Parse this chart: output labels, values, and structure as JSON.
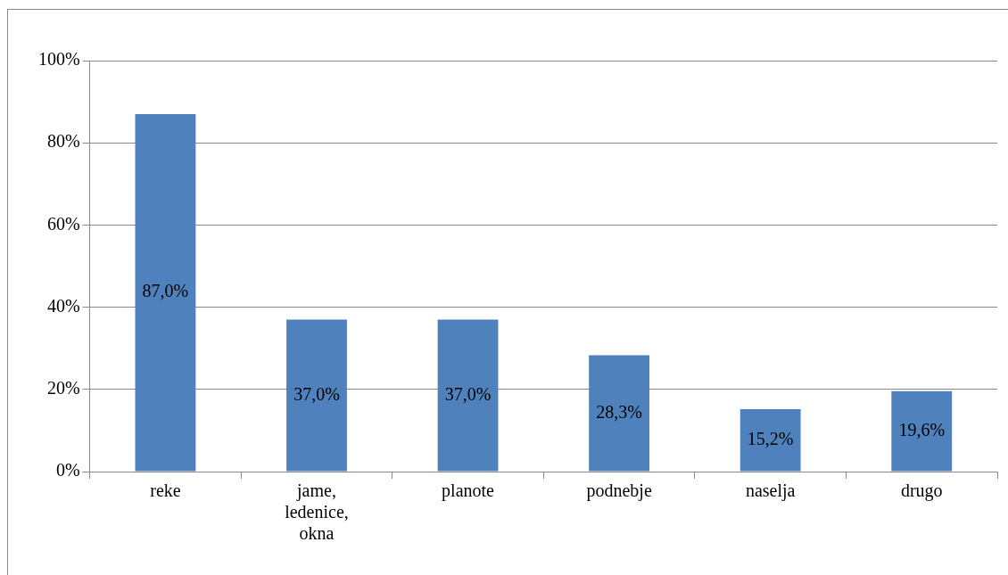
{
  "chart_data": {
    "type": "bar",
    "categories": [
      "reke",
      "jame, ledenice, okna",
      "planote",
      "podnebje",
      "naselja",
      "drugo"
    ],
    "values": [
      87.0,
      37.0,
      37.0,
      28.3,
      15.2,
      19.6
    ],
    "value_labels": [
      "87,0%",
      "37,0%",
      "37,0%",
      "28,3%",
      "15,2%",
      "19,6%"
    ],
    "color": "#4f81bd",
    "ylim": [
      0,
      100
    ],
    "yticks": [
      {
        "value": 0,
        "label": "0%"
      },
      {
        "value": 20,
        "label": "20%"
      },
      {
        "value": 40,
        "label": "40%"
      },
      {
        "value": 60,
        "label": "60%"
      },
      {
        "value": 80,
        "label": "80%"
      },
      {
        "value": 100,
        "label": "100%"
      }
    ],
    "grid": "y",
    "legend": false
  }
}
